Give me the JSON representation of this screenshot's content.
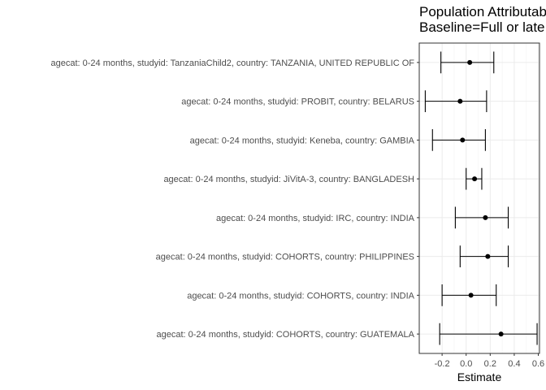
{
  "chart_data": {
    "type": "scatter",
    "title_lines": [
      "Population Attributable",
      "Baseline=Full or late"
    ],
    "xlabel": "Estimate",
    "ylabel": "",
    "xlim": [
      -0.39,
      0.61
    ],
    "xticks": [
      -0.2,
      0.0,
      0.2,
      0.4,
      0.6
    ],
    "xtick_labels": [
      "-0.2",
      "0.0",
      "0.2",
      "0.4",
      "0.6"
    ],
    "grid": true,
    "categories": [
      "agecat: 0-24 months, studyid: TanzaniaChild2, country: TANZANIA, UNITED REPUBLIC OF",
      "agecat: 0-24 months, studyid: PROBIT, country: BELARUS",
      "agecat: 0-24 months, studyid: Keneba, country: GAMBIA",
      "agecat: 0-24 months, studyid: JiVitA-3, country: BANGLADESH",
      "agecat: 0-24 months, studyid: IRC, country: INDIA",
      "agecat: 0-24 months, studyid: COHORTS, country: PHILIPPINES",
      "agecat: 0-24 months, studyid: COHORTS, country: INDIA",
      "agecat: 0-24 months, studyid: COHORTS, country: GUATEMALA"
    ],
    "estimates": [
      0.03,
      -0.05,
      -0.03,
      0.07,
      0.16,
      0.18,
      0.04,
      0.29
    ],
    "ci_lower": [
      -0.21,
      -0.34,
      -0.28,
      0.0,
      -0.09,
      -0.05,
      -0.2,
      -0.22
    ],
    "ci_upper": [
      0.23,
      0.17,
      0.16,
      0.13,
      0.35,
      0.35,
      0.25,
      0.59
    ]
  }
}
